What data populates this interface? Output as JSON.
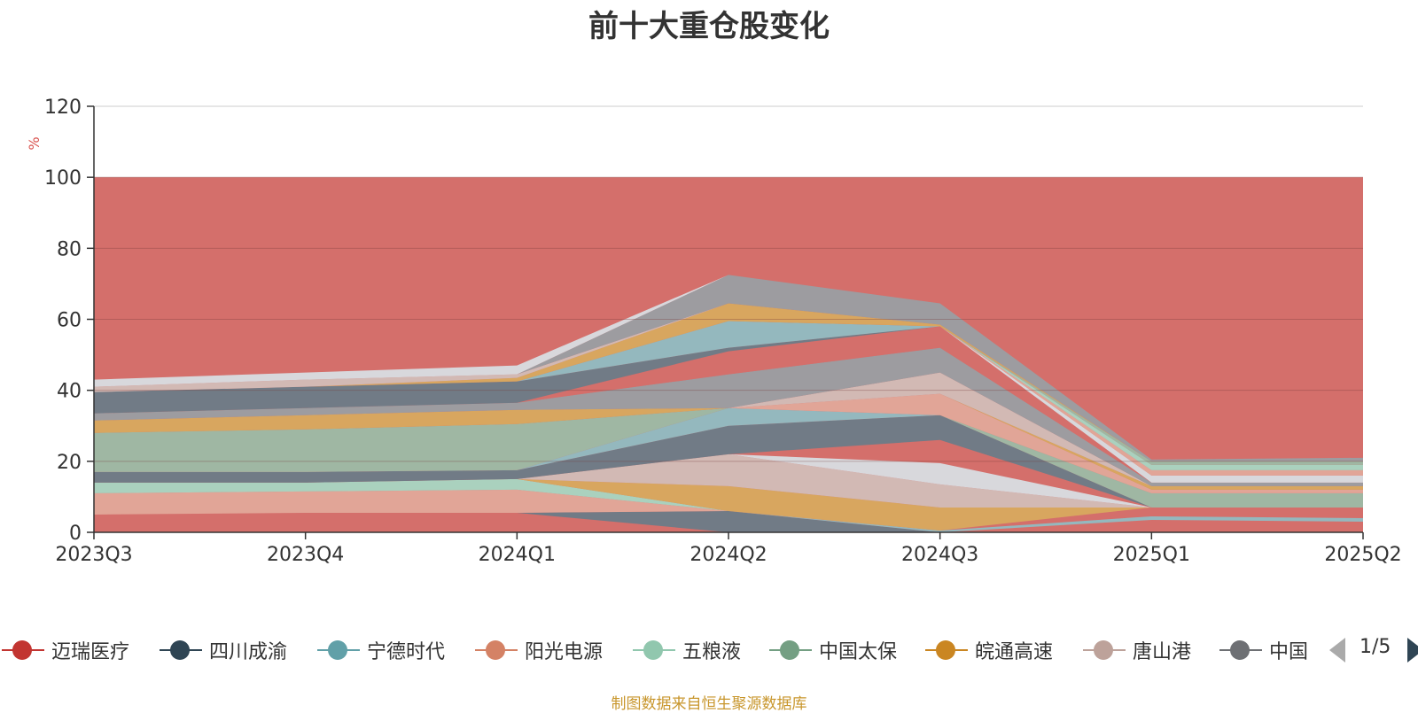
{
  "chart_data": {
    "type": "area",
    "title": "前十大重仓股变化",
    "ylabel": "%",
    "ylim": [
      0,
      120
    ],
    "yticks": [
      0,
      20,
      40,
      60,
      80,
      100,
      120
    ],
    "categories": [
      "2023Q3",
      "2023Q4",
      "2024Q1",
      "2024Q2",
      "2024Q3",
      "2025Q1",
      "2025Q2"
    ],
    "grid": true,
    "background_band": {
      "from": 0,
      "to": 100,
      "color": "#d46f6b"
    },
    "layers": [
      {
        "color": "#d46f6b",
        "lower": [
          0,
          0,
          0,
          0,
          0,
          0,
          0
        ],
        "upper": [
          5,
          5.5,
          5.5,
          0,
          0,
          7,
          7
        ]
      },
      {
        "color": "#6b7b88",
        "lower": [
          5,
          5.5,
          5.5,
          0,
          0,
          7,
          7
        ],
        "upper": [
          5,
          5.5,
          5.5,
          6,
          0,
          7,
          7
        ]
      },
      {
        "color": "#90bcc3",
        "lower": [
          5,
          5.5,
          5.5,
          6,
          0,
          3.5,
          3
        ],
        "upper": [
          5,
          5.5,
          5.5,
          6,
          0.5,
          4.5,
          4
        ]
      },
      {
        "color": "#e2a89a",
        "lower": [
          5,
          5.5,
          5.5,
          6,
          0.5,
          7,
          7
        ],
        "upper": [
          11,
          11.5,
          12,
          6,
          0.5,
          7,
          7
        ]
      },
      {
        "color": "#a8d6c3",
        "lower": [
          11,
          11.5,
          12,
          6,
          0.5,
          7,
          7
        ],
        "upper": [
          14,
          14,
          15,
          6,
          0.5,
          7,
          7
        ]
      },
      {
        "color": "#d8a95f",
        "lower": [
          14,
          14,
          15,
          6,
          0.5,
          7,
          7
        ],
        "upper": [
          14,
          14,
          15,
          13,
          7,
          7,
          7
        ]
      },
      {
        "color": "#d2bdb8",
        "lower": [
          14,
          14,
          15,
          13,
          7,
          7,
          7
        ],
        "upper": [
          14,
          14,
          15,
          22,
          13.5,
          7,
          7
        ]
      },
      {
        "color": "#d8dde3",
        "lower": [
          14,
          14,
          15,
          22,
          13.5,
          7,
          7
        ],
        "upper": [
          14,
          14,
          15,
          22,
          19.5,
          7,
          7
        ]
      },
      {
        "color": "#6b7b88",
        "lower": [
          14,
          14,
          15,
          22,
          26,
          7,
          7
        ],
        "upper": [
          17,
          17,
          17.5,
          30,
          33,
          7,
          7
        ]
      },
      {
        "color": "#90bcc3",
        "lower": [
          17,
          17,
          17.5,
          30,
          33,
          7,
          7
        ],
        "upper": [
          17,
          17,
          17.5,
          35,
          33,
          7,
          7
        ]
      },
      {
        "color": "#9cbba7",
        "lower": [
          17,
          17,
          17.5,
          35,
          33,
          7,
          7
        ],
        "upper": [
          28,
          29,
          30.5,
          35,
          33,
          11,
          11
        ]
      },
      {
        "color": "#9cbba7",
        "lower": [
          28,
          29,
          30.5,
          35,
          33,
          11,
          11
        ],
        "upper": [
          28,
          29,
          30.5,
          35,
          33,
          11,
          11
        ]
      },
      {
        "color": "#e2a89a",
        "lower": [
          28,
          29,
          30.5,
          35,
          33,
          11,
          11
        ],
        "upper": [
          28,
          29,
          30.5,
          35,
          39,
          12,
          12
        ]
      },
      {
        "color": "#d8a95f",
        "lower": [
          28,
          29,
          30.5,
          35,
          39,
          12,
          12
        ],
        "upper": [
          31.5,
          33,
          34.5,
          35,
          39,
          13,
          13
        ]
      },
      {
        "color": "#d2bdb8",
        "lower": [
          31.5,
          33,
          34.5,
          35,
          39,
          13,
          13
        ],
        "upper": [
          31.5,
          33,
          34.5,
          35,
          45,
          13,
          13
        ]
      },
      {
        "color": "#9a9ea3",
        "lower": [
          31.5,
          33,
          34.5,
          35,
          45,
          13,
          13
        ],
        "upper": [
          33.5,
          35,
          36.5,
          44.5,
          52,
          14,
          14
        ]
      },
      {
        "color": "#d46f6b",
        "lower": [
          33.5,
          35,
          36.5,
          44.5,
          52,
          14,
          14
        ],
        "upper": [
          33.5,
          35,
          36.5,
          51,
          58,
          14,
          14
        ]
      },
      {
        "color": "#6b7b88",
        "lower": [
          33.5,
          35,
          36.5,
          51,
          58,
          14,
          14
        ],
        "upper": [
          39.5,
          41,
          42.5,
          52,
          58,
          14,
          14
        ]
      },
      {
        "color": "#90bcc3",
        "lower": [
          39.5,
          41,
          42.5,
          52,
          58,
          14,
          14
        ],
        "upper": [
          39.5,
          41,
          42.5,
          59.5,
          58,
          14,
          14
        ]
      },
      {
        "color": "#d8dde3",
        "lower": [
          39.5,
          41,
          42.5,
          59.5,
          58,
          14,
          14
        ],
        "upper": [
          39.5,
          41,
          42.5,
          59.5,
          58,
          16,
          16
        ]
      },
      {
        "color": "#e2a89a",
        "lower": [
          39.5,
          41,
          42.5,
          59.5,
          58,
          16,
          16
        ],
        "upper": [
          39.5,
          41,
          42.5,
          59.5,
          58,
          17.5,
          17.5
        ]
      },
      {
        "color": "#a8d6c3",
        "lower": [
          39.5,
          41,
          42.5,
          59.5,
          58,
          17.5,
          17.5
        ],
        "upper": [
          39.5,
          41,
          42.5,
          59.5,
          58,
          19,
          19
        ]
      },
      {
        "color": "#9cbba7",
        "lower": [
          39.5,
          41,
          42.5,
          59.5,
          58,
          19,
          19
        ],
        "upper": [
          39.5,
          41,
          42.5,
          59.5,
          58,
          20,
          20
        ]
      },
      {
        "color": "#d8a95f",
        "lower": [
          39.5,
          41,
          42.5,
          59.5,
          58,
          20,
          20
        ],
        "upper": [
          39.5,
          41,
          43.5,
          64.5,
          58.5,
          20,
          20
        ]
      },
      {
        "color": "#d2bdb8",
        "lower": [
          39.5,
          41,
          43.5,
          64.5,
          58.5,
          20,
          20
        ],
        "upper": [
          41,
          43,
          44.5,
          64.5,
          58.5,
          20,
          20
        ]
      },
      {
        "color": "#9a9ea3",
        "lower": [
          41,
          43,
          44.5,
          64.5,
          58.5,
          20,
          20
        ],
        "upper": [
          41,
          43,
          44.5,
          72.5,
          64.5,
          20.5,
          21
        ]
      },
      {
        "color": "#d8dde3",
        "lower": [
          41,
          43,
          44.5,
          72.5,
          64.5,
          20.5,
          21
        ],
        "upper": [
          43,
          45,
          47,
          72.5,
          64.5,
          20.5,
          21
        ]
      }
    ],
    "legend": {
      "items": [
        {
          "name": "迈瑞医疗",
          "color": "#c23531"
        },
        {
          "name": "四川成渝",
          "color": "#2f4554"
        },
        {
          "name": "宁德时代",
          "color": "#61a0a8"
        },
        {
          "name": "阳光电源",
          "color": "#d48265"
        },
        {
          "name": "五粮液",
          "color": "#91c7ae"
        },
        {
          "name": "中国太保",
          "color": "#749f83"
        },
        {
          "name": "皖通高速",
          "color": "#ca8622"
        },
        {
          "name": "唐山港",
          "color": "#bda29a"
        },
        {
          "name": "中国",
          "color": "#6e7074"
        }
      ],
      "page": "1/5",
      "placement": "bottom"
    }
  },
  "footer_note": "制图数据来自恒生聚源数据库"
}
